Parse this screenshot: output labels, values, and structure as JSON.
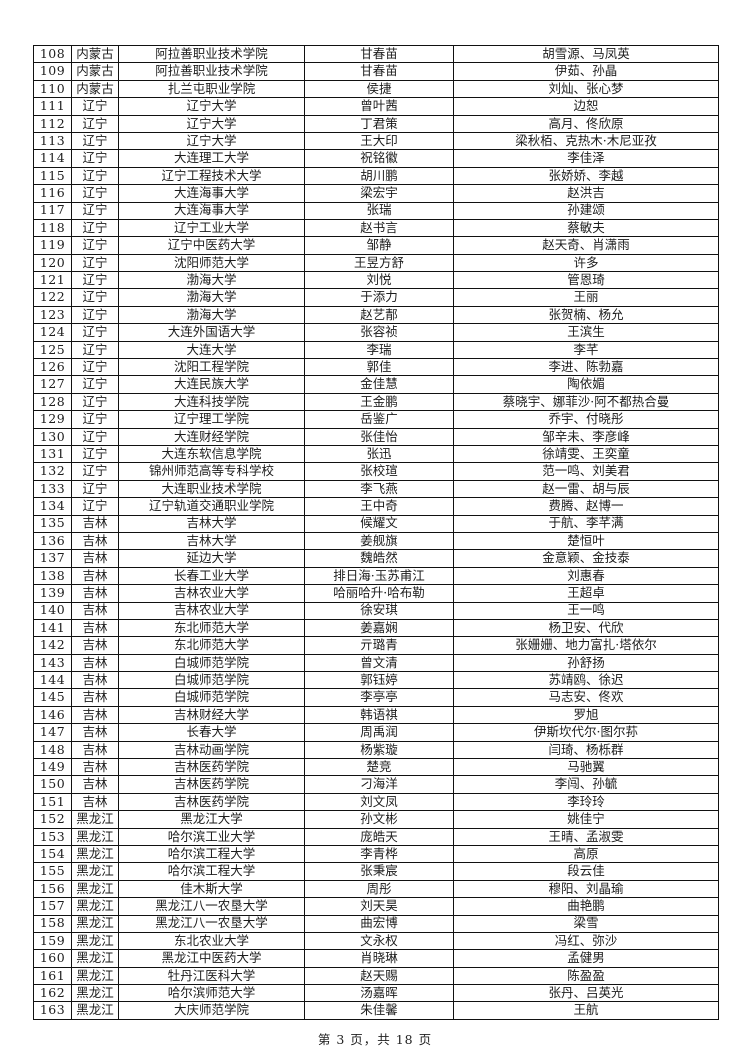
{
  "page": {
    "footer": "第 3 页，共 18 页"
  },
  "table": {
    "rows": [
      [
        "108",
        "内蒙古",
        "阿拉善职业技术学院",
        "甘春苗",
        "胡雪源、马凤英"
      ],
      [
        "109",
        "内蒙古",
        "阿拉善职业技术学院",
        "甘春苗",
        "伊茹、孙晶"
      ],
      [
        "110",
        "内蒙古",
        "扎兰屯职业学院",
        "侯捷",
        "刘灿、张心梦"
      ],
      [
        "111",
        "辽宁",
        "辽宁大学",
        "曾叶茜",
        "边恕"
      ],
      [
        "112",
        "辽宁",
        "辽宁大学",
        "丁君策",
        "高月、佟欣原"
      ],
      [
        "113",
        "辽宁",
        "辽宁大学",
        "王大印",
        "梁秋栢、克热木·木尼亚孜"
      ],
      [
        "114",
        "辽宁",
        "大连理工大学",
        "祝铭徽",
        "李佳泽"
      ],
      [
        "115",
        "辽宁",
        "辽宁工程技术大学",
        "胡川鹏",
        "张娇娇、李越"
      ],
      [
        "116",
        "辽宁",
        "大连海事大学",
        "梁宏宇",
        "赵洪吉"
      ],
      [
        "117",
        "辽宁",
        "大连海事大学",
        "张瑞",
        "孙建颂"
      ],
      [
        "118",
        "辽宁",
        "辽宁工业大学",
        "赵书言",
        "蔡敏夫"
      ],
      [
        "119",
        "辽宁",
        "辽宁中医药大学",
        "邹静",
        "赵天奇、肖潇雨"
      ],
      [
        "120",
        "辽宁",
        "沈阳师范大学",
        "王昱方舒",
        "许多"
      ],
      [
        "121",
        "辽宁",
        "渤海大学",
        "刘悦",
        "管恩琦"
      ],
      [
        "122",
        "辽宁",
        "渤海大学",
        "于添力",
        "王丽"
      ],
      [
        "123",
        "辽宁",
        "渤海大学",
        "赵艺郬",
        "张贺楠、杨允"
      ],
      [
        "124",
        "辽宁",
        "大连外国语大学",
        "张容祯",
        "王滨生"
      ],
      [
        "125",
        "辽宁",
        "大连大学",
        "李瑞",
        "李芊"
      ],
      [
        "126",
        "辽宁",
        "沈阳工程学院",
        "郭佳",
        "李进、陈勃嘉"
      ],
      [
        "127",
        "辽宁",
        "大连民族大学",
        "金佳慧",
        "陶依媚"
      ],
      [
        "128",
        "辽宁",
        "大连科技学院",
        "王金鹏",
        "蔡晓宇、娜菲沙·阿不都热合曼"
      ],
      [
        "129",
        "辽宁",
        "辽宁理工学院",
        "岳鉴广",
        "乔宇、付晓彤"
      ],
      [
        "130",
        "辽宁",
        "大连财经学院",
        "张佳怡",
        "邹辛未、李彦峰"
      ],
      [
        "131",
        "辽宁",
        "大连东软信息学院",
        "张迅",
        "徐靖雯、王奕童"
      ],
      [
        "132",
        "辽宁",
        "锦州师范高等专科学校",
        "张校瑄",
        "范一鸣、刘美君"
      ],
      [
        "133",
        "辽宁",
        "大连职业技术学院",
        "李飞燕",
        "赵一雷、胡与辰"
      ],
      [
        "134",
        "辽宁",
        "辽宁轨道交通职业学院",
        "王中奇",
        "费腾、赵博一"
      ],
      [
        "135",
        "吉林",
        "吉林大学",
        "候耀文",
        "于航、李芊满"
      ],
      [
        "136",
        "吉林",
        "吉林大学",
        "姜舰旗",
        "楚恒叶"
      ],
      [
        "137",
        "吉林",
        "延边大学",
        "魏皓然",
        "金意颖、金技泰"
      ],
      [
        "138",
        "吉林",
        "长春工业大学",
        "排日海·玉苏甫江",
        "刘惠春"
      ],
      [
        "139",
        "吉林",
        "吉林农业大学",
        "哈丽哈升·哈布勒",
        "王超卓"
      ],
      [
        "140",
        "吉林",
        "吉林农业大学",
        "徐安琪",
        "王一鸣"
      ],
      [
        "141",
        "吉林",
        "东北师范大学",
        "姜嘉娴",
        "杨卫安、代欣"
      ],
      [
        "142",
        "吉林",
        "东北师范大学",
        "亓璐青",
        "张姗姗、地力富扎·塔依尔"
      ],
      [
        "143",
        "吉林",
        "白城师范学院",
        "曾文清",
        "孙舒扬"
      ],
      [
        "144",
        "吉林",
        "白城师范学院",
        "郭钰婷",
        "苏靖鸥、徐迟"
      ],
      [
        "145",
        "吉林",
        "白城师范学院",
        "李亭亭",
        "马志安、佟欢"
      ],
      [
        "146",
        "吉林",
        "吉林财经大学",
        "韩语祺",
        "罗旭"
      ],
      [
        "147",
        "吉林",
        "长春大学",
        "周禹润",
        "伊斯坎代尔·图尔荪"
      ],
      [
        "148",
        "吉林",
        "吉林动画学院",
        "杨紫璇",
        "闫琦、杨栎群"
      ],
      [
        "149",
        "吉林",
        "吉林医药学院",
        "楚竞",
        "马驰翼"
      ],
      [
        "150",
        "吉林",
        "吉林医药学院",
        "刁海洋",
        "李闯、孙毓"
      ],
      [
        "151",
        "吉林",
        "吉林医药学院",
        "刘文凤",
        "李玲玲"
      ],
      [
        "152",
        "黑龙江",
        "黑龙江大学",
        "孙文彬",
        "姚佳宁"
      ],
      [
        "153",
        "黑龙江",
        "哈尔滨工业大学",
        "庞皓天",
        "王晴、孟淑雯"
      ],
      [
        "154",
        "黑龙江",
        "哈尔滨工程大学",
        "李青桦",
        "高原"
      ],
      [
        "155",
        "黑龙江",
        "哈尔滨工程大学",
        "张秉宸",
        "段云佳"
      ],
      [
        "156",
        "黑龙江",
        "佳木斯大学",
        "周彤",
        "穆阳、刘晶瑜"
      ],
      [
        "157",
        "黑龙江",
        "黑龙江八一农垦大学",
        "刘天昊",
        "曲艳鹏"
      ],
      [
        "158",
        "黑龙江",
        "黑龙江八一农垦大学",
        "曲宏博",
        "梁雪"
      ],
      [
        "159",
        "黑龙江",
        "东北农业大学",
        "文永权",
        "冯红、弥沙"
      ],
      [
        "160",
        "黑龙江",
        "黑龙江中医药大学",
        "肖晓琳",
        "孟健男"
      ],
      [
        "161",
        "黑龙江",
        "牡丹江医科大学",
        "赵天赐",
        "陈盈盈"
      ],
      [
        "162",
        "黑龙江",
        "哈尔滨师范大学",
        "汤嘉晖",
        "张丹、吕英光"
      ],
      [
        "163",
        "黑龙江",
        "大庆师范学院",
        "朱佳馨",
        "王航"
      ]
    ]
  }
}
